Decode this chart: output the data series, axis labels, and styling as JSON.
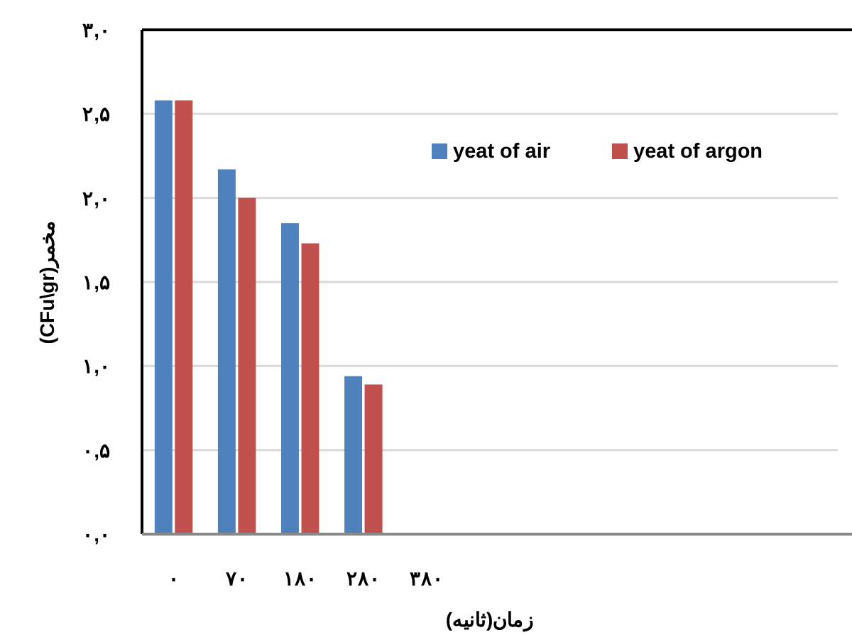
{
  "chart_data": {
    "type": "bar",
    "xlabel": "زمان(ثانیه)",
    "ylabel": "(CFu\\gr)مخمر",
    "categories": [
      "۰",
      "۷۰",
      "۱۸۰",
      "۲۸۰",
      "۳۸۰",
      null,
      null,
      null,
      null,
      null,
      null
    ],
    "series": [
      {
        "name": "yeat of air",
        "color": "#4f81bd",
        "values": [
          2.58,
          2.17,
          1.85,
          0.94,
          null,
          null,
          null,
          null,
          null,
          null,
          null
        ]
      },
      {
        "name": "yeat of argon",
        "color": "#c0504d",
        "values": [
          2.58,
          2.0,
          1.73,
          0.89,
          null,
          null,
          null,
          null,
          null,
          null,
          null
        ]
      }
    ],
    "ylim": [
      0,
      3
    ],
    "yticks": [
      {
        "value": 0,
        "label": "۰,۰"
      },
      {
        "value": 0.5,
        "label": "۰,۵"
      },
      {
        "value": 1,
        "label": "۱,۰"
      },
      {
        "value": 1.5,
        "label": "۱,۵"
      },
      {
        "value": 2,
        "label": "۲,۰"
      },
      {
        "value": 2.5,
        "label": "۲,۵"
      },
      {
        "value": 3,
        "label": "۳,۰"
      }
    ],
    "grid": "y",
    "legend": "top right"
  }
}
